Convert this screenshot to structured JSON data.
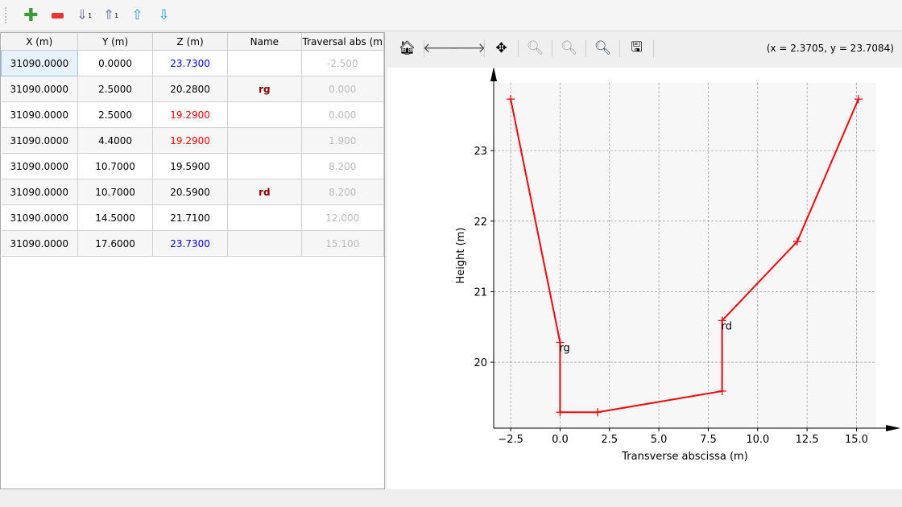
{
  "toolbar": {
    "icons": [
      "add-row-icon",
      "remove-row-icon",
      "sort-ascending-icon",
      "sort-descending-icon",
      "move-up-icon",
      "move-down-icon"
    ]
  },
  "table": {
    "headers": [
      "X (m)",
      "Y (m)",
      "Z (m)",
      "Name",
      "Traversal abs (m"
    ],
    "rows": [
      [
        "31090.0000",
        "0.0000",
        "23.7300",
        "",
        "-2.500"
      ],
      [
        "31090.0000",
        "2.5000",
        "20.2800",
        "rg",
        "0.000"
      ],
      [
        "31090.0000",
        "2.5000",
        "19.2900",
        "",
        "0.000"
      ],
      [
        "31090.0000",
        "4.4000",
        "19.2900",
        "",
        "1.900"
      ],
      [
        "31090.0000",
        "10.7000",
        "19.5900",
        "",
        "8.200"
      ],
      [
        "31090.0000",
        "10.7000",
        "20.5900",
        "rd",
        "8.200"
      ],
      [
        "31090.0000",
        "14.5000",
        "21.7100",
        "",
        "12.000"
      ],
      [
        "31090.0000",
        "17.6000",
        "23.7300",
        "",
        "15.100"
      ]
    ],
    "z_colors": [
      "#0000ff",
      "#000000",
      "#ff0000",
      "#ff0000",
      "#000000",
      "#000000",
      "#000000",
      "#0000ff"
    ]
  },
  "plot_toolbar": {
    "coords": "(x = 2.3705,   y = 23.7084)"
  },
  "chart_data": {
    "type": "line",
    "xlabel": "Transverse abscissa (m)",
    "ylabel": "Height (m)",
    "x": [
      -2.5,
      0,
      0,
      1.9,
      8.2,
      8.2,
      12,
      15.1
    ],
    "y": [
      23.73,
      20.28,
      19.29,
      19.29,
      19.59,
      20.59,
      21.71,
      23.73
    ],
    "point_labels": [
      {
        "index": 1,
        "text": "rg"
      },
      {
        "index": 5,
        "text": "rd"
      }
    ],
    "xticks": [
      -2.5,
      0.0,
      2.5,
      5.0,
      7.5,
      10.0,
      12.5,
      15.0
    ],
    "xtick_labels": [
      "−2.5",
      "0.0",
      "2.5",
      "5.0",
      "7.5",
      "10.0",
      "12.5",
      "15.0"
    ],
    "yticks": [
      20,
      21,
      22,
      23
    ],
    "ytick_labels": [
      "20",
      "21",
      "22",
      "23"
    ],
    "xlim": [
      -3.36,
      16.0
    ],
    "ylim": [
      19.065,
      23.96
    ],
    "grid": true,
    "color": "#ff0000"
  }
}
